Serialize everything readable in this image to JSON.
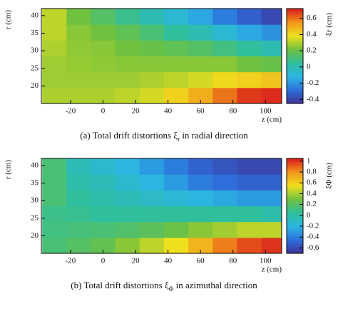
{
  "chart_data": [
    {
      "type": "contour",
      "x": [
        -30,
        -15,
        0,
        15,
        30,
        45,
        60,
        75,
        90,
        105
      ],
      "y": [
        17.25,
        21.75,
        26.25,
        30.75,
        35.25,
        39.75
      ],
      "values": [
        [
          0.3,
          0.3,
          0.3,
          0.32,
          0.35,
          0.42,
          0.5,
          0.6,
          0.68,
          0.7
        ],
        [
          0.28,
          0.28,
          0.28,
          0.28,
          0.3,
          0.32,
          0.35,
          0.4,
          0.42,
          0.45
        ],
        [
          0.28,
          0.27,
          0.26,
          0.25,
          0.25,
          0.25,
          0.25,
          0.25,
          0.22,
          0.2
        ],
        [
          0.3,
          0.26,
          0.25,
          0.22,
          0.2,
          0.18,
          0.15,
          0.1,
          0.05,
          0.0
        ],
        [
          0.32,
          0.25,
          0.22,
          0.18,
          0.12,
          0.05,
          0.0,
          -0.08,
          -0.15,
          -0.2
        ],
        [
          0.32,
          0.22,
          0.15,
          0.08,
          0.0,
          -0.08,
          -0.15,
          -0.25,
          -0.32,
          -0.38
        ]
      ],
      "xlim": [
        -38,
        110
      ],
      "xticks": [
        -20,
        0,
        20,
        40,
        60,
        80,
        100
      ],
      "ylim": [
        15,
        42
      ],
      "yticks": [
        20,
        25,
        30,
        35,
        40
      ],
      "clim": [
        -0.45,
        0.72
      ],
      "cticks": [
        -0.4,
        -0.2,
        0,
        0.2,
        0.4,
        0.6
      ],
      "colorscale": [
        "#3f2f94",
        "#2e6fdc",
        "#2bb6e2",
        "#2fbf9c",
        "#6fc13e",
        "#efe01e",
        "#f2961b",
        "#d91c1c"
      ],
      "xlabel": "z (cm)",
      "ylabel": "r (cm)",
      "clabel": "ξr (cm)",
      "caption": {
        "prefix": "(a) Total drift distortions ξ",
        "sub": "r",
        "suffix": " in radial direction"
      }
    },
    {
      "type": "contour",
      "x": [
        -30,
        -15,
        0,
        15,
        30,
        45,
        60,
        75,
        90,
        105
      ],
      "y": [
        17.25,
        21.75,
        26.25,
        30.75,
        35.25,
        39.75
      ],
      "values": [
        [
          0.15,
          0.2,
          0.25,
          0.35,
          0.45,
          0.55,
          0.7,
          0.85,
          0.95,
          1.0
        ],
        [
          0.12,
          0.14,
          0.15,
          0.18,
          0.22,
          0.28,
          0.35,
          0.4,
          0.45,
          0.45
        ],
        [
          0.1,
          0.08,
          0.05,
          0.05,
          0.05,
          0.05,
          0.05,
          0.05,
          0.05,
          0.0
        ],
        [
          0.15,
          0.05,
          0.0,
          -0.05,
          -0.1,
          -0.15,
          -0.2,
          -0.25,
          -0.3,
          -0.3
        ],
        [
          0.15,
          0.0,
          -0.05,
          -0.12,
          -0.2,
          -0.3,
          -0.4,
          -0.45,
          -0.5,
          -0.5
        ],
        [
          0.15,
          -0.05,
          -0.12,
          -0.2,
          -0.3,
          -0.4,
          -0.5,
          -0.55,
          -0.6,
          -0.6
        ]
      ],
      "xlim": [
        -38,
        110
      ],
      "xticks": [
        -20,
        0,
        20,
        40,
        60,
        80,
        100
      ],
      "ylim": [
        15,
        42
      ],
      "yticks": [
        20,
        25,
        30,
        35,
        40
      ],
      "clim": [
        -0.7,
        1.05
      ],
      "cticks": [
        -0.6,
        -0.4,
        -0.2,
        0,
        0.2,
        0.4,
        0.6,
        0.8,
        1
      ],
      "colorscale": [
        "#3f2f94",
        "#2e6fdc",
        "#2bb6e2",
        "#2fbf9c",
        "#6fc13e",
        "#efe01e",
        "#f2961b",
        "#d91c1c"
      ],
      "xlabel": "z (cm)",
      "ylabel": "r (cm)",
      "clabel": "ξΦ (cm)",
      "caption": {
        "prefix": "(b) Total drift distortions ξ",
        "sub": "Φ",
        "suffix": " in azimuthal direction"
      }
    }
  ]
}
